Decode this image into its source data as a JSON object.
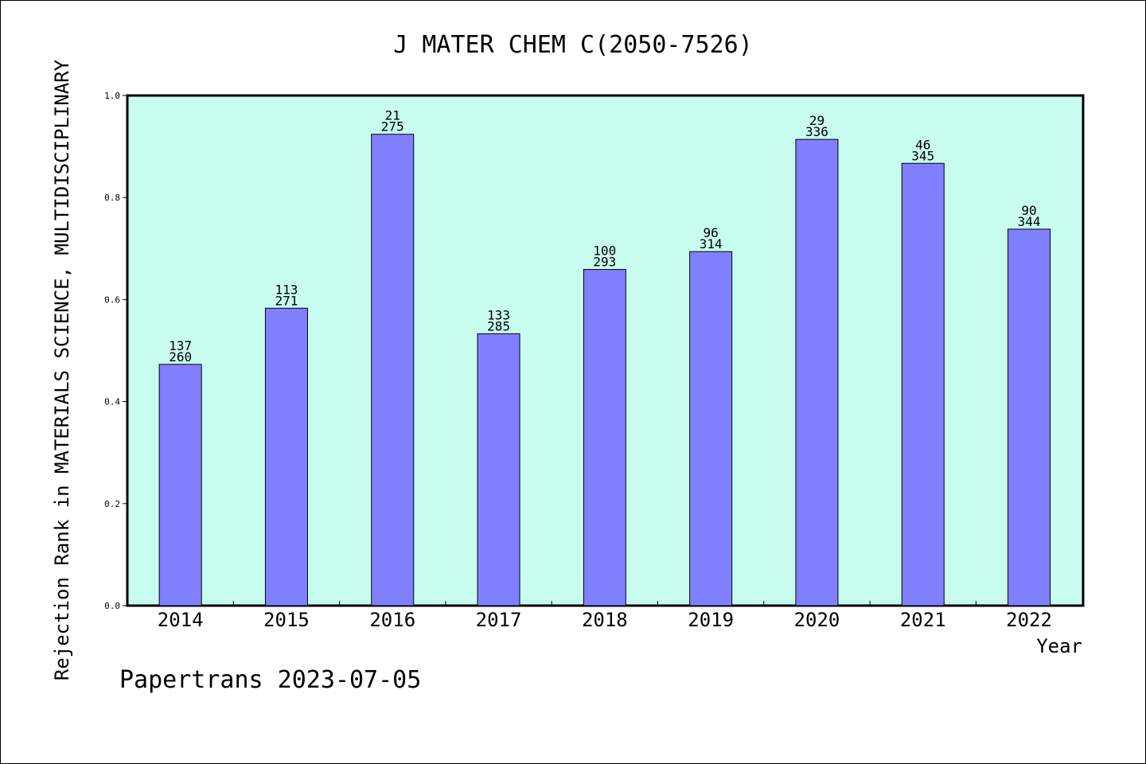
{
  "chart_data": {
    "type": "bar",
    "title": "J MATER CHEM C(2050-7526)",
    "xlabel": "Year",
    "ylabel": "Rejection Rank in MATERIALS SCIENCE, MULTIDISCIPLINARY",
    "categories": [
      "2014",
      "2015",
      "2016",
      "2017",
      "2018",
      "2019",
      "2020",
      "2021",
      "2022"
    ],
    "values": [
      0.473,
      0.583,
      0.924,
      0.533,
      0.659,
      0.694,
      0.914,
      0.867,
      0.738
    ],
    "rank": [
      137,
      113,
      21,
      133,
      100,
      96,
      29,
      46,
      90
    ],
    "total": [
      260,
      271,
      275,
      285,
      293,
      314,
      336,
      345,
      344
    ],
    "ylim": [
      0,
      1.0
    ],
    "yticks": [
      0.0,
      0.2,
      0.4,
      0.6,
      0.8,
      1.0
    ],
    "ytick_labels": [
      "0.0",
      "0.2",
      "0.4",
      "0.6",
      "0.8",
      "1.0"
    ],
    "grid": false,
    "legend": "none",
    "colors": {
      "bar": "#8080ff",
      "plot_background": "#c8fcee",
      "frame": "#000000"
    }
  },
  "footer": {
    "watermark": "Papertrans 2023-07-05"
  }
}
